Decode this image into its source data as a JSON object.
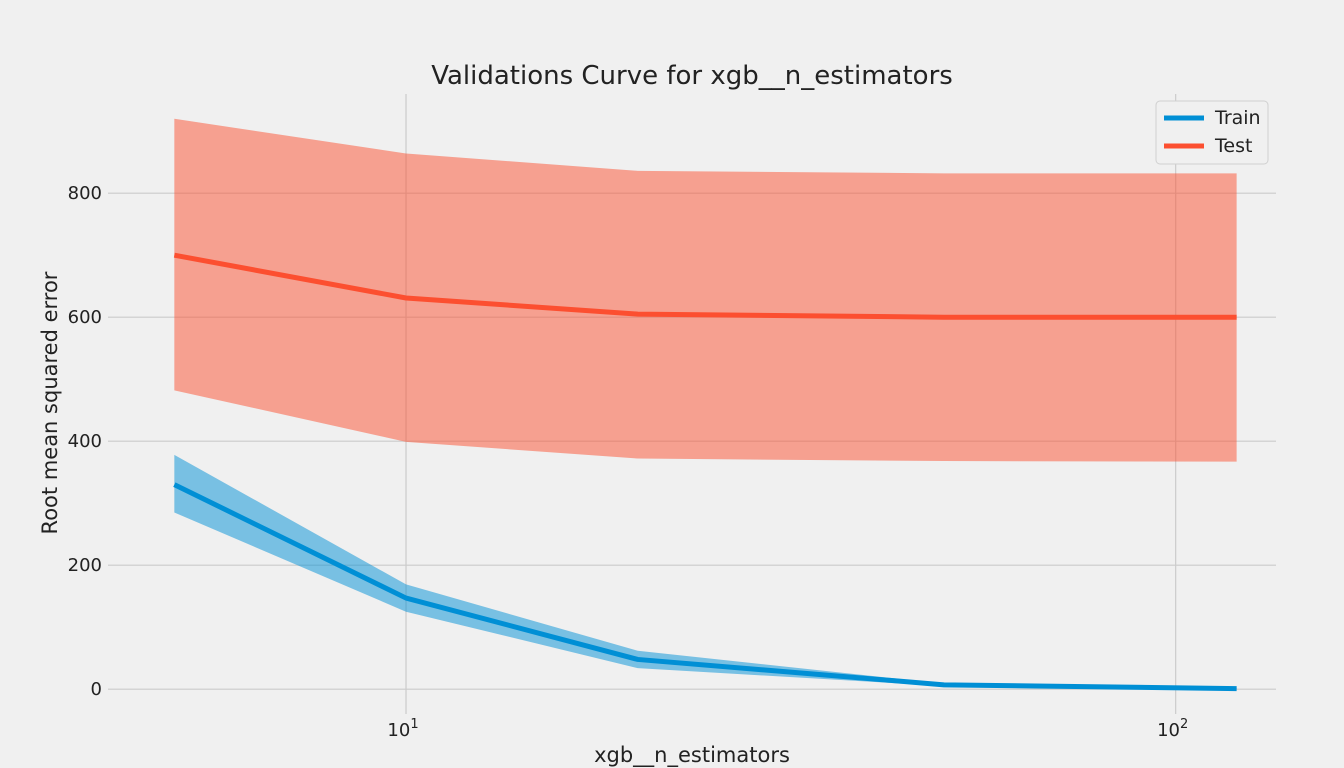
{
  "chart_data": {
    "type": "line",
    "title": "Validations Curve for xgb__n_estimators",
    "xlabel": "xgb__n_estimators",
    "ylabel": "Root mean squared error",
    "xscale": "log",
    "xlim": [
      4.1,
      135
    ],
    "ylim": [
      -40,
      960
    ],
    "x_ticks": [
      {
        "value": 10,
        "base": "10",
        "exp": "1"
      },
      {
        "value": 100,
        "base": "10",
        "exp": "2"
      }
    ],
    "y_ticks": [
      0,
      200,
      400,
      600,
      800
    ],
    "grid": true,
    "legend_position": "top-right",
    "x": [
      5,
      10,
      20,
      50,
      120
    ],
    "series": [
      {
        "name": "Train",
        "color": "#008fd5",
        "values": [
          330,
          147,
          48,
          7,
          1
        ],
        "lower": [
          285,
          125,
          34,
          5,
          0
        ],
        "upper": [
          378,
          169,
          62,
          9,
          2
        ]
      },
      {
        "name": "Test",
        "color": "#fc4f30",
        "values": [
          700,
          631,
          605,
          600,
          600
        ],
        "lower": [
          482,
          399,
          372,
          368,
          367
        ],
        "upper": [
          920,
          864,
          836,
          832,
          832
        ]
      }
    ]
  }
}
